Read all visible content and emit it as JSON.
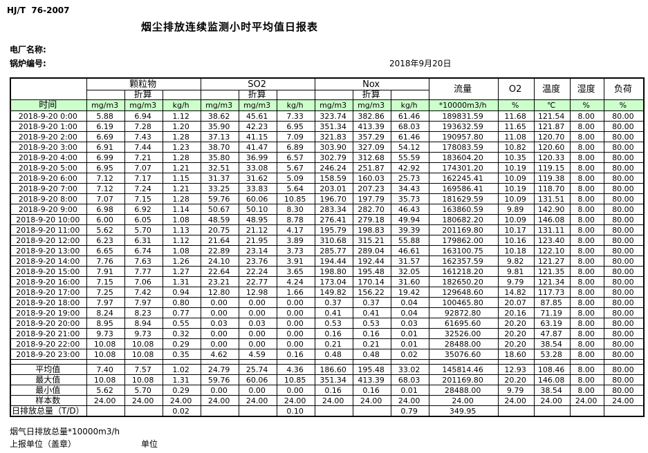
{
  "colors": {
    "header_green": "#ccffcc"
  },
  "header": {
    "standard": "HJ/T  76-2007",
    "title": "烟尘排放连续监测小时平均值日报表",
    "plant_label": "电厂名称:",
    "boiler_label": "锅炉编号:",
    "date": "2018年9月20日"
  },
  "table": {
    "time_label": "时间",
    "converted_label": "折算",
    "groups": [
      {
        "label": "颗粒物"
      },
      {
        "label": "SO2"
      },
      {
        "label": "Nox"
      }
    ],
    "tail_headers": [
      "流量",
      "O2",
      "温度",
      "湿度",
      "负荷"
    ],
    "units": [
      "mg/m3",
      "mg/m3",
      "kg/h",
      "mg/m3",
      "mg/m3",
      "kg/h",
      "mg/m3",
      "mg/m3",
      "kg/h",
      "*10000m3/h",
      "%",
      "℃",
      "%",
      "%"
    ],
    "rows": [
      {
        "time": "2018-9-20  0:00",
        "values": [
          "5.88",
          "6.94",
          "1.12",
          "38.62",
          "45.61",
          "7.33",
          "323.74",
          "382.86",
          "61.46",
          "189831.59",
          "11.68",
          "121.54",
          "8.00",
          "80.00"
        ]
      },
      {
        "time": "2018-9-20  1:00",
        "values": [
          "6.19",
          "7.28",
          "1.20",
          "35.90",
          "42.23",
          "6.95",
          "351.34",
          "413.39",
          "68.03",
          "193632.59",
          "11.65",
          "121.87",
          "8.00",
          "80.00"
        ]
      },
      {
        "time": "2018-9-20  2:00",
        "values": [
          "6.69",
          "7.43",
          "1.28",
          "37.13",
          "41.15",
          "7.09",
          "321.83",
          "357.29",
          "61.46",
          "190957.80",
          "11.08",
          "120.70",
          "8.00",
          "80.00"
        ]
      },
      {
        "time": "2018-9-20  3:00",
        "values": [
          "6.91",
          "7.44",
          "1.23",
          "38.70",
          "41.47",
          "6.89",
          "303.90",
          "327.09",
          "54.12",
          "178083.59",
          "10.82",
          "120.60",
          "8.00",
          "80.00"
        ]
      },
      {
        "time": "2018-9-20  4:00",
        "values": [
          "6.99",
          "7.21",
          "1.28",
          "35.80",
          "36.99",
          "6.57",
          "302.79",
          "312.68",
          "55.59",
          "183604.20",
          "10.35",
          "120.33",
          "8.00",
          "80.00"
        ]
      },
      {
        "time": "2018-9-20  5:00",
        "values": [
          "6.95",
          "7.07",
          "1.21",
          "32.51",
          "33.08",
          "5.67",
          "246.24",
          "251.87",
          "42.92",
          "174301.20",
          "10.19",
          "119.15",
          "8.00",
          "80.00"
        ]
      },
      {
        "time": "2018-9-20  6:00",
        "values": [
          "7.12",
          "7.17",
          "1.15",
          "31.37",
          "31.62",
          "5.09",
          "158.59",
          "160.03",
          "25.73",
          "162245.41",
          "10.09",
          "119.38",
          "8.00",
          "80.00"
        ]
      },
      {
        "time": "2018-9-20  7:00",
        "values": [
          "7.12",
          "7.24",
          "1.21",
          "33.25",
          "33.83",
          "5.64",
          "203.01",
          "207.23",
          "34.43",
          "169586.41",
          "10.19",
          "118.70",
          "8.00",
          "80.00"
        ]
      },
      {
        "time": "2018-9-20  8:00",
        "values": [
          "7.07",
          "7.15",
          "1.28",
          "59.76",
          "60.06",
          "10.85",
          "196.70",
          "197.79",
          "35.73",
          "181629.59",
          "10.09",
          "131.51",
          "8.00",
          "80.00"
        ]
      },
      {
        "time": "2018-9-20  9:00",
        "values": [
          "6.98",
          "6.92",
          "1.14",
          "50.67",
          "50.10",
          "8.30",
          "283.34",
          "282.70",
          "46.43",
          "163860.59",
          "9.89",
          "142.90",
          "8.00",
          "80.00"
        ]
      },
      {
        "time": "2018-9-20 10:00",
        "values": [
          "6.00",
          "6.05",
          "1.08",
          "48.59",
          "48.95",
          "8.78",
          "276.41",
          "279.18",
          "49.94",
          "180682.20",
          "10.09",
          "146.08",
          "8.00",
          "80.00"
        ]
      },
      {
        "time": "2018-9-20 11:00",
        "values": [
          "5.62",
          "5.70",
          "1.13",
          "20.75",
          "21.12",
          "4.17",
          "195.79",
          "198.83",
          "39.39",
          "201169.80",
          "10.17",
          "131.11",
          "8.00",
          "80.00"
        ]
      },
      {
        "time": "2018-9-20 12:00",
        "values": [
          "6.23",
          "6.31",
          "1.12",
          "21.64",
          "21.95",
          "3.89",
          "310.68",
          "315.21",
          "55.88",
          "179862.00",
          "10.16",
          "123.40",
          "8.00",
          "80.00"
        ]
      },
      {
        "time": "2018-9-20 13:00",
        "values": [
          "6.65",
          "6.74",
          "1.08",
          "22.89",
          "23.14",
          "3.73",
          "285.77",
          "289.04",
          "46.61",
          "163100.75",
          "10.18",
          "122.10",
          "8.00",
          "80.00"
        ]
      },
      {
        "time": "2018-9-20 14:00",
        "values": [
          "7.76",
          "7.63",
          "1.26",
          "24.10",
          "23.76",
          "3.91",
          "194.44",
          "192.44",
          "31.57",
          "162357.59",
          "9.82",
          "121.27",
          "8.00",
          "80.00"
        ]
      },
      {
        "time": "2018-9-20 15:00",
        "values": [
          "7.91",
          "7.77",
          "1.27",
          "22.64",
          "22.24",
          "3.65",
          "198.80",
          "195.48",
          "32.05",
          "161218.20",
          "9.81",
          "121.35",
          "8.00",
          "80.00"
        ]
      },
      {
        "time": "2018-9-20 16:00",
        "values": [
          "7.15",
          "7.06",
          "1.31",
          "23.21",
          "22.77",
          "4.24",
          "173.04",
          "170.14",
          "31.60",
          "182650.20",
          "9.79",
          "121.34",
          "8.00",
          "80.00"
        ]
      },
      {
        "time": "2018-9-20 17:00",
        "values": [
          "7.25",
          "7.42",
          "0.94",
          "12.80",
          "12.98",
          "1.66",
          "149.82",
          "156.22",
          "19.42",
          "129648.60",
          "14.82",
          "117.73",
          "8.00",
          "80.00"
        ]
      },
      {
        "time": "2018-9-20 18:00",
        "values": [
          "7.97",
          "7.97",
          "0.80",
          "0.00",
          "0.00",
          "0.00",
          "0.37",
          "0.37",
          "0.04",
          "100465.80",
          "20.07",
          "87.85",
          "8.00",
          "80.00"
        ]
      },
      {
        "time": "2018-9-20 19:00",
        "values": [
          "8.24",
          "8.23",
          "0.77",
          "0.00",
          "0.00",
          "0.00",
          "0.41",
          "0.41",
          "0.04",
          "92872.80",
          "20.16",
          "71.19",
          "8.00",
          "80.00"
        ]
      },
      {
        "time": "2018-9-20 20:00",
        "values": [
          "8.95",
          "8.94",
          "0.55",
          "0.03",
          "0.03",
          "0.00",
          "0.53",
          "0.53",
          "0.03",
          "61695.60",
          "20.20",
          "63.19",
          "8.00",
          "80.00"
        ]
      },
      {
        "time": "2018-9-20 21:00",
        "values": [
          "9.73",
          "9.73",
          "0.32",
          "0.00",
          "0.00",
          "0.00",
          "0.16",
          "0.16",
          "0.01",
          "32526.00",
          "20.20",
          "47.87",
          "8.00",
          "80.00"
        ]
      },
      {
        "time": "2018-9-20 22:00",
        "values": [
          "10.08",
          "10.08",
          "0.29",
          "0.00",
          "0.00",
          "0.00",
          "0.21",
          "0.21",
          "0.01",
          "28488.00",
          "20.20",
          "38.54",
          "8.00",
          "80.00"
        ]
      },
      {
        "time": "2018-9-20 23:00",
        "values": [
          "10.08",
          "10.08",
          "0.35",
          "4.62",
          "4.59",
          "0.16",
          "0.48",
          "0.48",
          "0.02",
          "35076.60",
          "18.60",
          "53.28",
          "8.00",
          "80.00"
        ]
      }
    ],
    "summary_rows": [
      {
        "label": "平均值",
        "values": [
          "7.40",
          "7.57",
          "1.02",
          "24.79",
          "25.74",
          "4.36",
          "186.60",
          "195.48",
          "33.02",
          "145814.46",
          "12.93",
          "108.46",
          "8.00",
          "80.00"
        ]
      },
      {
        "label": "最大值",
        "values": [
          "10.08",
          "10.08",
          "1.31",
          "59.76",
          "60.06",
          "10.85",
          "351.34",
          "413.39",
          "68.03",
          "201169.80",
          "20.20",
          "146.08",
          "8.00",
          "80.00"
        ]
      },
      {
        "label": "最小值",
        "values": [
          "5.62",
          "5.70",
          "0.29",
          "0.00",
          "0.00",
          "0.00",
          "0.16",
          "0.16",
          "0.01",
          "28488.00",
          "9.79",
          "38.54",
          "8.00",
          "80.00"
        ]
      },
      {
        "label": "样本数",
        "values": [
          "24.00",
          "24.00",
          "24.00",
          "24.00",
          "24.00",
          "24.00",
          "24.00",
          "24.00",
          "24.00",
          "24.00",
          "24.00",
          "24.00",
          "24.00",
          "24.00"
        ]
      },
      {
        "label": "日排放总量（T/D）",
        "values": [
          "",
          "",
          "0.02",
          "",
          "",
          "0.10",
          "",
          "",
          "0.79",
          "349.95",
          "",
          "",
          "",
          ""
        ]
      }
    ]
  },
  "footer": {
    "flow_total_note": "烟气日排放总量*10000m3/h",
    "stamp_label": "上报单位（盖章）",
    "unit_label": "单位"
  }
}
